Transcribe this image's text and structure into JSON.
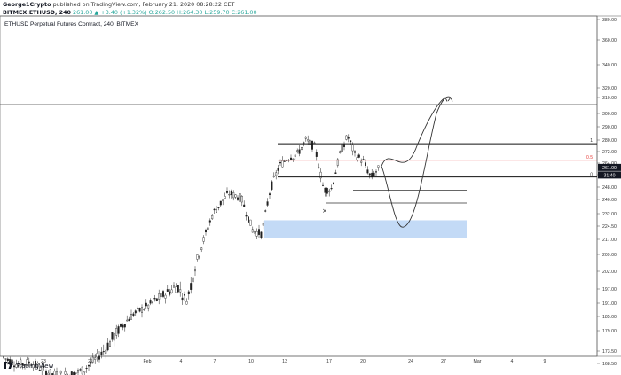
{
  "header": {
    "author": "George1Crypto",
    "published": "published on TradingView.com, February 21, 2020 08:28:22 CET",
    "symbol": "BITMEX:ETHUSD, 240",
    "ohlc": "261.00 ▲ +3.40 (+1.32%) O:262.50 H:264.30 L:259.70 C:261.00"
  },
  "chart_data": {
    "type": "candlestick",
    "title": "ETHUSD Perpetual Futures Contract, 240, BITMEX",
    "ylim": [
      161,
      384
    ],
    "y_ticks": [
      "380.00",
      "360.00",
      "340.00",
      "320.00",
      "310.00",
      "300.00",
      "290.00",
      "280.00",
      "272.00",
      "264.00",
      "256.00",
      "248.00",
      "240.00",
      "232.00",
      "224.50",
      "217.00",
      "209.00",
      "202.00",
      "197.00",
      "191.00",
      "185.00",
      "179.00",
      "173.50",
      "168.50"
    ],
    "y_tick_values": [
      380,
      360,
      340,
      320,
      310,
      300,
      290,
      280,
      272,
      264,
      256,
      248,
      240,
      232,
      224.5,
      217,
      209,
      202,
      197,
      191,
      185,
      179,
      173.5,
      168.5
    ],
    "x_ticks": [
      "20",
      "23",
      "27",
      "Feb",
      "4",
      "7",
      "10",
      "13",
      "17",
      "20",
      "24",
      "27",
      "Mar",
      "4",
      "9"
    ],
    "last_price": "261.00",
    "countdown": "31:40",
    "fib_labels": {
      "top": "1",
      "mid": "0.5",
      "bottom": "0"
    },
    "levels": {
      "fib_1": 277.5,
      "fib_05": 266,
      "fib_0": 254.5,
      "support_1": 246,
      "support_2": 238
    },
    "demand_zone": {
      "low": 217.5,
      "high": 228
    },
    "marker": "×",
    "watermark": "TradingView",
    "colors": {
      "up": "#333333",
      "down": "#333333",
      "fib_mid": "#e53935",
      "zone": "#b9d3f5",
      "price_tag": "#131722"
    }
  }
}
